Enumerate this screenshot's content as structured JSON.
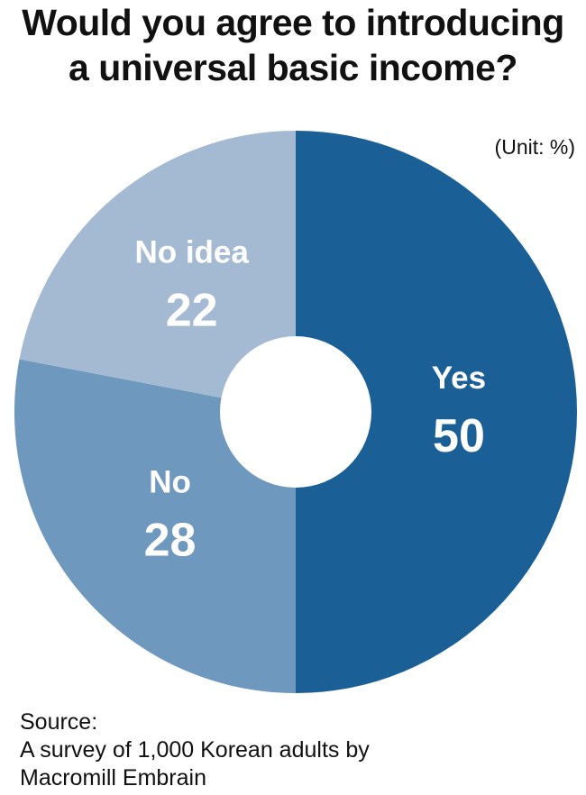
{
  "chart_data": {
    "type": "pie",
    "title_lines": [
      "Would you agree to introducing",
      "a universal basic income?"
    ],
    "unit_label": "(Unit: %)",
    "slices": [
      {
        "label": "Yes",
        "value": 50,
        "color": "#1b5f97"
      },
      {
        "label": "No",
        "value": 28,
        "color": "#6f98bf"
      },
      {
        "label": "No idea",
        "value": 22,
        "color": "#a4bad3"
      }
    ],
    "donut_hole": true,
    "source_lines": [
      "Source:",
      "A survey of 1,000 Korean adults by",
      "Macromill Embrain"
    ]
  }
}
